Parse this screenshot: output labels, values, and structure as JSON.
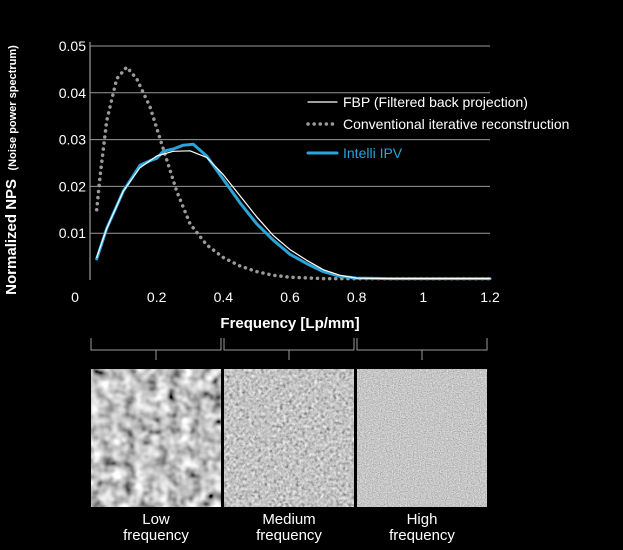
{
  "chart_data": {
    "type": "line",
    "xlabel": "Frequency [Lp/mm]",
    "ylabel_main": "Normalized NPS",
    "ylabel_sub": "(Noise power spectrum)",
    "xlim": [
      0,
      1.2
    ],
    "ylim": [
      0,
      0.05
    ],
    "x_ticks": [
      "0",
      "0.2",
      "0.4",
      "0.6",
      "0.8",
      "1",
      "1.2"
    ],
    "x_tick_values": [
      0,
      0.2,
      0.4,
      0.6,
      0.8,
      1.0,
      1.2
    ],
    "y_ticks": [
      "0.01",
      "0.02",
      "0.03",
      "0.04",
      "0.05"
    ],
    "y_tick_values": [
      0.01,
      0.02,
      0.03,
      0.04,
      0.05
    ],
    "grid": "horizontal",
    "legend_position": "top-right",
    "series": [
      {
        "name": "FBP (Filtered back projection)",
        "color": "#ffffff",
        "style": "solid",
        "points": [
          [
            0.02,
            0.0048
          ],
          [
            0.05,
            0.011
          ],
          [
            0.1,
            0.019
          ],
          [
            0.15,
            0.024
          ],
          [
            0.2,
            0.0265
          ],
          [
            0.25,
            0.0275
          ],
          [
            0.3,
            0.0276
          ],
          [
            0.35,
            0.0262
          ],
          [
            0.4,
            0.0225
          ],
          [
            0.45,
            0.018
          ],
          [
            0.5,
            0.0135
          ],
          [
            0.55,
            0.0095
          ],
          [
            0.6,
            0.0065
          ],
          [
            0.65,
            0.0042
          ],
          [
            0.7,
            0.0022
          ],
          [
            0.75,
            0.001
          ],
          [
            0.8,
            0.0004
          ],
          [
            0.9,
            0.0003
          ],
          [
            1.0,
            0.0003
          ],
          [
            1.2,
            0.0003
          ]
        ]
      },
      {
        "name": "Conventional iterative reconstruction",
        "color": "#9a9a9a",
        "style": "dotted",
        "points": [
          [
            0.02,
            0.015
          ],
          [
            0.03,
            0.022
          ],
          [
            0.05,
            0.034
          ],
          [
            0.08,
            0.043
          ],
          [
            0.11,
            0.0455
          ],
          [
            0.14,
            0.043
          ],
          [
            0.18,
            0.037
          ],
          [
            0.22,
            0.028
          ],
          [
            0.26,
            0.019
          ],
          [
            0.3,
            0.012
          ],
          [
            0.35,
            0.0075
          ],
          [
            0.4,
            0.0048
          ],
          [
            0.45,
            0.003
          ],
          [
            0.5,
            0.0018
          ],
          [
            0.55,
            0.001
          ],
          [
            0.6,
            0.0006
          ],
          [
            0.7,
            0.0003
          ],
          [
            0.8,
            0.0003
          ],
          [
            1.0,
            0.0003
          ],
          [
            1.2,
            0.0003
          ]
        ]
      },
      {
        "name": "Intelli IPV",
        "color": "#2aa4d9",
        "style": "solid",
        "points": [
          [
            0.02,
            0.0045
          ],
          [
            0.05,
            0.011
          ],
          [
            0.1,
            0.019
          ],
          [
            0.15,
            0.0245
          ],
          [
            0.18,
            0.0255
          ],
          [
            0.2,
            0.026
          ],
          [
            0.22,
            0.0275
          ],
          [
            0.25,
            0.028
          ],
          [
            0.28,
            0.0288
          ],
          [
            0.31,
            0.029
          ],
          [
            0.35,
            0.0265
          ],
          [
            0.4,
            0.0215
          ],
          [
            0.45,
            0.0165
          ],
          [
            0.5,
            0.012
          ],
          [
            0.55,
            0.0085
          ],
          [
            0.6,
            0.0055
          ],
          [
            0.65,
            0.0035
          ],
          [
            0.7,
            0.0018
          ],
          [
            0.75,
            0.0008
          ],
          [
            0.8,
            0.0004
          ],
          [
            0.9,
            0.0003
          ],
          [
            1.0,
            0.0003
          ],
          [
            1.2,
            0.0003
          ]
        ]
      }
    ]
  },
  "tiles": [
    {
      "label_line1": "Low",
      "label_line2": "frequency"
    },
    {
      "label_line1": "Medium",
      "label_line2": "frequency"
    },
    {
      "label_line1": "High",
      "label_line2": "frequency"
    }
  ]
}
